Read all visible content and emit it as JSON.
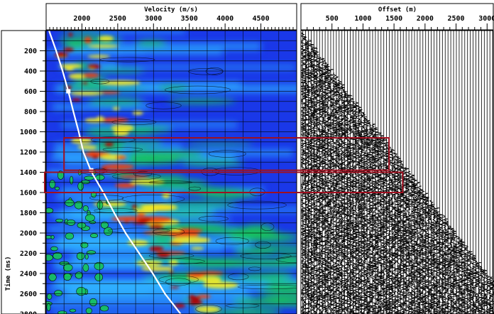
{
  "chart_data": [
    {
      "type": "heatmap",
      "title": "",
      "xlabel": "Velocity (m/s)",
      "ylabel": "Time (ms)",
      "x_ticks": [
        2000,
        2500,
        3000,
        3500,
        4000,
        4500
      ],
      "y_ticks": [
        200,
        400,
        600,
        800,
        1000,
        1200,
        1400,
        1600,
        1800,
        2000,
        2200,
        2400,
        2600,
        2800
      ],
      "xlim": [
        1500,
        5000
      ],
      "ylim": [
        0,
        2800
      ],
      "grid": true,
      "picked_velocity_function": {
        "time_ms": [
          0,
          200,
          400,
          600,
          800,
          1000,
          1200,
          1400,
          1600,
          1800,
          2000,
          2200,
          2400,
          2600,
          2800
        ],
        "velocity_ms": [
          1540,
          1640,
          1730,
          1810,
          1880,
          1955,
          2020,
          2135,
          2300,
          2450,
          2610,
          2800,
          2990,
          3160,
          3380
        ]
      },
      "pick_markers": {
        "time_ms": [
          600,
          1380
        ],
        "velocity_ms": [
          1810,
          2130
        ]
      },
      "highlight_boxes": [
        {
          "time_range_ms": [
            1060,
            1380
          ],
          "velocity_range_ms": [
            1750,
            5000
          ]
        },
        {
          "time_range_ms": [
            1400,
            1600
          ],
          "velocity_range_ms": [
            1480,
            5000
          ]
        }
      ]
    },
    {
      "type": "seismic-gather",
      "title": "",
      "xlabel": "Offset (m)",
      "ylabel": "",
      "x_ticks": [
        500,
        1000,
        1500,
        2000,
        2500,
        3000
      ],
      "xlim": [
        0,
        3100
      ],
      "ylim": [
        0,
        2800
      ],
      "highlight_boxes": [
        {
          "time_range_ms": [
            1060,
            1380
          ],
          "offset_range_m": [
            0,
            1420
          ]
        },
        {
          "time_range_ms": [
            1400,
            1600
          ],
          "offset_range_m": [
            0,
            1640
          ]
        }
      ]
    }
  ],
  "colors": {
    "low": "#1a38e8",
    "mid_low": "#2fb0ff",
    "mid": "#18c45a",
    "mid_high": "#f2ea22",
    "high": "#f04010",
    "peak": "#b00000",
    "box": "#a01020",
    "pick_line": "#ffffff"
  }
}
